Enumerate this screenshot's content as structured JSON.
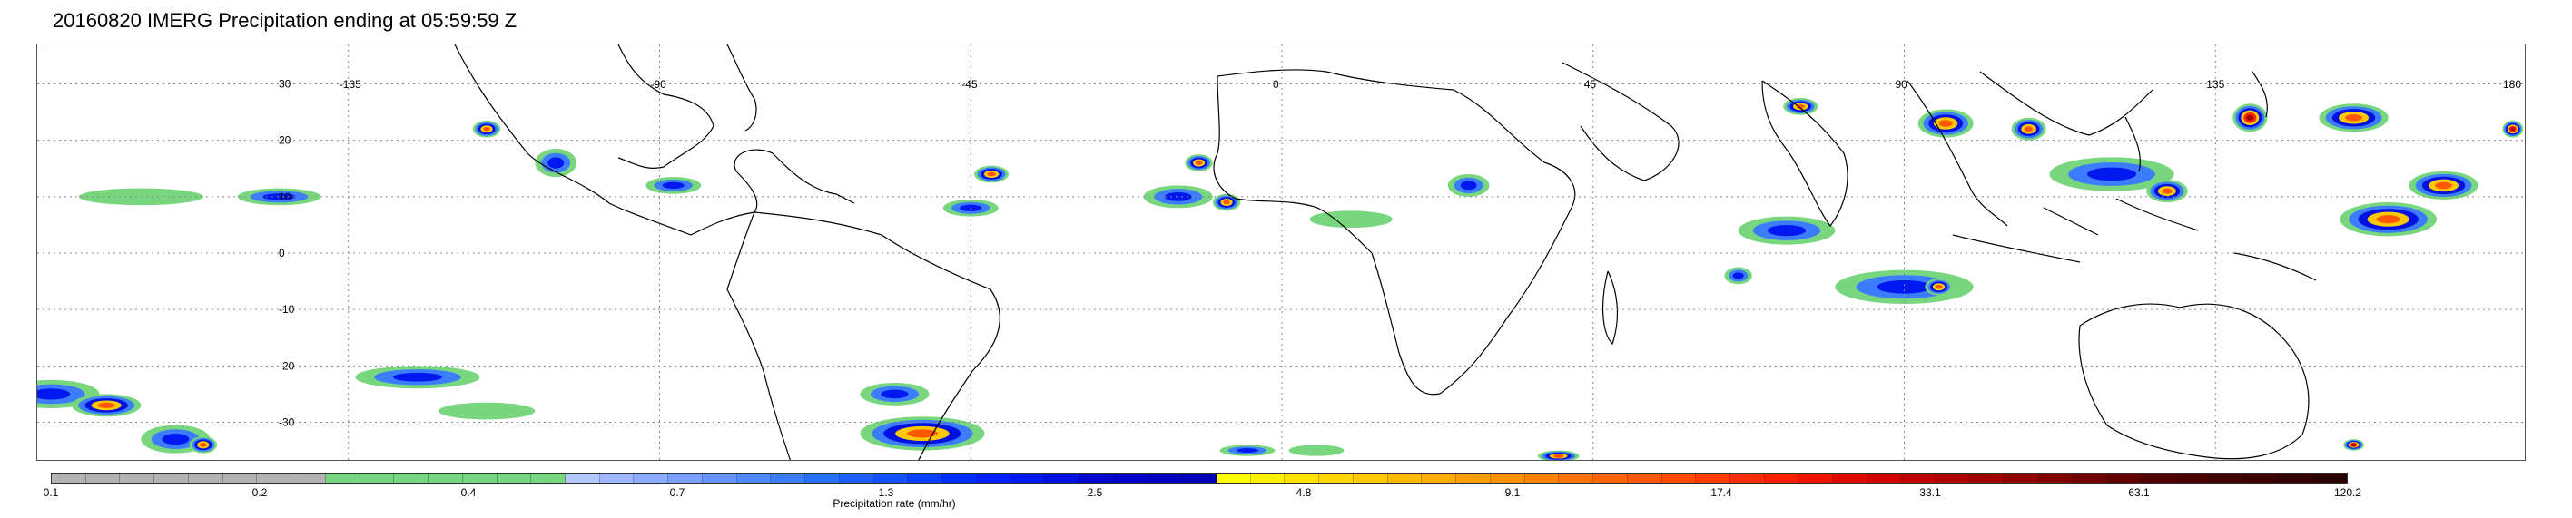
{
  "title": "20160820 IMERG Precipitation ending at 05:59:59 Z",
  "map": {
    "lon_labels": [
      "-135",
      "-90",
      "-45",
      "0",
      "45",
      "90",
      "135",
      "180"
    ],
    "lat_labels": [
      "30",
      "20",
      "10",
      "0",
      "-10",
      "-20",
      "-30"
    ],
    "lon_range": [
      -180,
      180
    ],
    "lat_range": [
      -37,
      37
    ],
    "grid": "dotted",
    "coastline_color": "#000000"
  },
  "colorbar": {
    "title": "Precipitation rate (mm/hr)",
    "tick_labels": [
      "0.1",
      "0.2",
      "0.4",
      "0.7",
      "1.3",
      "2.5",
      "4.8",
      "9.1",
      "17.4",
      "33.1",
      "63.1",
      "120.2"
    ],
    "colors": [
      "#b3b3b3",
      "#b3b3b3",
      "#b3b3b3",
      "#b3b3b3",
      "#b3b3b3",
      "#b3b3b3",
      "#b3b3b3",
      "#b3b3b3",
      "#78d77e",
      "#78d77e",
      "#78d77e",
      "#78d77e",
      "#78d77e",
      "#78d77e",
      "#78d77e",
      "#b4c8ff",
      "#a0b8ff",
      "#8cacff",
      "#78a0ff",
      "#6494ff",
      "#5088ff",
      "#3c7cff",
      "#2870ff",
      "#1e60ff",
      "#1450ff",
      "#0a40ff",
      "#0030ff",
      "#0020ff",
      "#0018f0",
      "#0010e0",
      "#0008d0",
      "#0000c8",
      "#0000c0",
      "#0000b8",
      "#ffff00",
      "#fff200",
      "#ffe400",
      "#ffd600",
      "#ffc800",
      "#ffba00",
      "#ffac00",
      "#ff9e00",
      "#ff9000",
      "#ff8200",
      "#ff7400",
      "#ff6600",
      "#ff5800",
      "#ff4a00",
      "#ff3c00",
      "#ff2e00",
      "#ff2000",
      "#f01400",
      "#e00a00",
      "#d00000",
      "#c00000",
      "#b00000",
      "#a00000",
      "#900000",
      "#800000",
      "#700000",
      "#600000",
      "#500000",
      "#4a0000",
      "#420000",
      "#3a0000",
      "#320000",
      "#2a0000"
    ]
  },
  "precip_cells": [
    {
      "lon": -178,
      "lat": -25,
      "w": 14,
      "h": 5,
      "level": "medium"
    },
    {
      "lon": -170,
      "lat": -27,
      "w": 10,
      "h": 4,
      "level": "heavy"
    },
    {
      "lon": -160,
      "lat": -33,
      "w": 10,
      "h": 5,
      "level": "medium"
    },
    {
      "lon": -156,
      "lat": -34,
      "w": 4,
      "h": 3,
      "level": "heavy"
    },
    {
      "lon": -125,
      "lat": -22,
      "w": 18,
      "h": 4,
      "level": "medium"
    },
    {
      "lon": -115,
      "lat": -28,
      "w": 14,
      "h": 3,
      "level": "light"
    },
    {
      "lon": -165,
      "lat": 10,
      "w": 18,
      "h": 3,
      "level": "light"
    },
    {
      "lon": -145,
      "lat": 10,
      "w": 12,
      "h": 3,
      "level": "medium"
    },
    {
      "lon": -115,
      "lat": 22,
      "w": 4,
      "h": 3,
      "level": "heavy"
    },
    {
      "lon": -105,
      "lat": 16,
      "w": 6,
      "h": 5,
      "level": "medium"
    },
    {
      "lon": -88,
      "lat": 12,
      "w": 8,
      "h": 3,
      "level": "medium"
    },
    {
      "lon": -45,
      "lat": 8,
      "w": 8,
      "h": 3,
      "level": "medium"
    },
    {
      "lon": -42,
      "lat": 14,
      "w": 5,
      "h": 3,
      "level": "heavy"
    },
    {
      "lon": -15,
      "lat": 10,
      "w": 10,
      "h": 4,
      "level": "medium"
    },
    {
      "lon": -12,
      "lat": 16,
      "w": 4,
      "h": 3,
      "level": "heavy"
    },
    {
      "lon": -8,
      "lat": 9,
      "w": 4,
      "h": 3,
      "level": "heavy"
    },
    {
      "lon": 10,
      "lat": 6,
      "w": 12,
      "h": 3,
      "level": "light"
    },
    {
      "lon": 27,
      "lat": 12,
      "w": 6,
      "h": 4,
      "level": "medium"
    },
    {
      "lon": 73,
      "lat": 4,
      "w": 14,
      "h": 5,
      "level": "medium"
    },
    {
      "lon": 66,
      "lat": -4,
      "w": 4,
      "h": 3,
      "level": "medium"
    },
    {
      "lon": 90,
      "lat": -6,
      "w": 20,
      "h": 6,
      "level": "medium"
    },
    {
      "lon": 95,
      "lat": -6,
      "w": 4,
      "h": 3,
      "level": "heavy"
    },
    {
      "lon": 75,
      "lat": 26,
      "w": 5,
      "h": 3,
      "level": "heavy"
    },
    {
      "lon": 96,
      "lat": 23,
      "w": 8,
      "h": 5,
      "level": "heavy"
    },
    {
      "lon": 108,
      "lat": 22,
      "w": 5,
      "h": 4,
      "level": "heavy"
    },
    {
      "lon": 120,
      "lat": 14,
      "w": 18,
      "h": 6,
      "level": "medium"
    },
    {
      "lon": 128,
      "lat": 11,
      "w": 6,
      "h": 4,
      "level": "heavy"
    },
    {
      "lon": 140,
      "lat": 24,
      "w": 5,
      "h": 5,
      "level": "extreme"
    },
    {
      "lon": 155,
      "lat": 24,
      "w": 10,
      "h": 5,
      "level": "heavy"
    },
    {
      "lon": 160,
      "lat": 6,
      "w": 14,
      "h": 6,
      "level": "heavy"
    },
    {
      "lon": 168,
      "lat": 12,
      "w": 10,
      "h": 5,
      "level": "heavy"
    },
    {
      "lon": 178,
      "lat": 22,
      "w": 3,
      "h": 3,
      "level": "extreme"
    },
    {
      "lon": 155,
      "lat": -34,
      "w": 3,
      "h": 2,
      "level": "extreme"
    },
    {
      "lon": -52,
      "lat": -32,
      "w": 18,
      "h": 6,
      "level": "heavy"
    },
    {
      "lon": -56,
      "lat": -25,
      "w": 10,
      "h": 4,
      "level": "medium"
    },
    {
      "lon": -5,
      "lat": -35,
      "w": 8,
      "h": 2,
      "level": "medium"
    },
    {
      "lon": 40,
      "lat": -36,
      "w": 6,
      "h": 2,
      "level": "heavy"
    },
    {
      "lon": 5,
      "lat": -35,
      "w": 8,
      "h": 2,
      "level": "light"
    }
  ]
}
